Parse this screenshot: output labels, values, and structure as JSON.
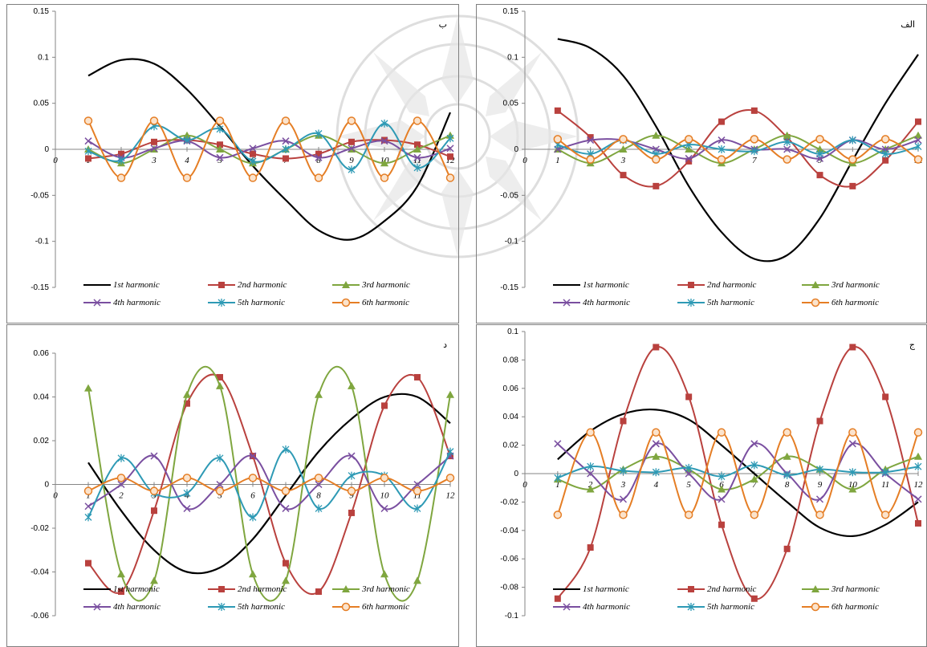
{
  "colors": {
    "h1": "#000000",
    "h2": "#b9413e",
    "h3": "#7fa63f",
    "h4": "#7a4fa0",
    "h5": "#2e9ab5",
    "h6": "#e57e25"
  },
  "legend_labels": [
    "1st harmonic",
    "2nd harmonic",
    "3rd harmonic",
    "4th harmonic",
    "5th harmonic",
    "6th harmonic"
  ],
  "chart_data": [
    {
      "type": "line",
      "corner_label": "ب",
      "x": [
        1,
        2,
        3,
        4,
        5,
        6,
        7,
        8,
        9,
        10,
        11,
        12
      ],
      "x_ticks": [
        "0",
        "1",
        "2",
        "3",
        "4",
        "5",
        "6",
        "7",
        "8",
        "9",
        "10",
        "11",
        "12"
      ],
      "ylim": [
        -0.15,
        0.15
      ],
      "y_ticks": [
        "0.15",
        "0.1",
        "0.05",
        "0",
        "-0.05",
        "-0.1",
        "-0.15"
      ],
      "series": [
        {
          "name": "1st harmonic",
          "values": [
            0.08,
            0.097,
            0.093,
            0.065,
            0.025,
            -0.018,
            -0.055,
            -0.088,
            -0.098,
            -0.078,
            -0.04,
            0.04
          ]
        },
        {
          "name": "2nd harmonic",
          "values": [
            -0.01,
            -0.005,
            0.008,
            0.01,
            0.005,
            -0.005,
            -0.01,
            -0.005,
            0.008,
            0.01,
            0.005,
            -0.008
          ]
        },
        {
          "name": "3rd harmonic",
          "values": [
            0,
            -0.015,
            0,
            0.015,
            0,
            -0.015,
            0,
            0.015,
            0,
            -0.015,
            0,
            0.015
          ]
        },
        {
          "name": "4th harmonic",
          "values": [
            0.009,
            -0.009,
            0.001,
            0.009,
            -0.009,
            0.001,
            0.009,
            -0.009,
            0.001,
            0.009,
            -0.009,
            0.001
          ]
        },
        {
          "name": "5th harmonic",
          "values": [
            -0.002,
            -0.012,
            0.025,
            0.01,
            0.022,
            -0.013,
            0,
            0.017,
            -0.022,
            0.028,
            -0.02,
            0.012
          ]
        },
        {
          "name": "6th harmonic",
          "values": [
            0.031,
            -0.031,
            0.031,
            -0.031,
            0.031,
            -0.031,
            0.031,
            -0.031,
            0.031,
            -0.031,
            0.031,
            -0.031
          ]
        }
      ]
    },
    {
      "type": "line",
      "corner_label": "الف",
      "x": [
        1,
        2,
        3,
        4,
        5,
        6,
        7,
        8,
        9,
        10,
        11,
        12
      ],
      "x_ticks": [
        "0",
        "1",
        "2",
        "3",
        "4",
        "5",
        "6",
        "7",
        "8",
        "9",
        "10",
        "11",
        "12"
      ],
      "ylim": [
        -0.15,
        0.15
      ],
      "y_ticks": [
        "0.15",
        "0.1",
        "0.05",
        "0",
        "-0.05",
        "-0.1",
        "-0.15"
      ],
      "series": [
        {
          "name": "1st harmonic",
          "values": [
            0.12,
            0.11,
            0.08,
            0.025,
            -0.04,
            -0.09,
            -0.119,
            -0.115,
            -0.075,
            -0.012,
            0.05,
            0.103
          ]
        },
        {
          "name": "2nd harmonic",
          "values": [
            0.042,
            0.013,
            -0.028,
            -0.04,
            -0.013,
            0.03,
            0.042,
            0.013,
            -0.028,
            -0.04,
            -0.012,
            0.03
          ]
        },
        {
          "name": "3rd harmonic",
          "values": [
            0,
            -0.015,
            0,
            0.015,
            0,
            -0.015,
            0,
            0.015,
            0,
            -0.015,
            0,
            0.015
          ]
        },
        {
          "name": "4th harmonic",
          "values": [
            0,
            0.01,
            0.01,
            0,
            -0.01,
            0.01,
            0,
            0,
            -0.01,
            0.01,
            0,
            0.01
          ]
        },
        {
          "name": "5th harmonic",
          "values": [
            0.005,
            -0.005,
            0.01,
            -0.005,
            0.005,
            0,
            -0.002,
            0.008,
            -0.005,
            0.01,
            -0.005,
            0.003
          ]
        },
        {
          "name": "6th harmonic",
          "values": [
            0.011,
            -0.011,
            0.011,
            -0.011,
            0.011,
            -0.011,
            0.011,
            -0.011,
            0.011,
            -0.011,
            0.011,
            -0.011
          ]
        }
      ]
    },
    {
      "type": "line",
      "corner_label": "د",
      "x": [
        1,
        2,
        3,
        4,
        5,
        6,
        7,
        8,
        9,
        10,
        11,
        12
      ],
      "x_ticks": [
        "0",
        "1",
        "2",
        "3",
        "4",
        "5",
        "6",
        "7",
        "8",
        "9",
        "10",
        "11",
        "12"
      ],
      "ylim": [
        -0.06,
        0.06
      ],
      "y_ticks": [
        "0.06",
        "0.04",
        "0.02",
        "0",
        "-0.02",
        "-0.04",
        "-0.06"
      ],
      "series": [
        {
          "name": "1st harmonic",
          "values": [
            0.01,
            -0.012,
            -0.03,
            -0.04,
            -0.038,
            -0.025,
            -0.005,
            0.015,
            0.03,
            0.04,
            0.04,
            0.028
          ]
        },
        {
          "name": "2nd harmonic",
          "values": [
            -0.036,
            -0.049,
            -0.012,
            0.037,
            0.049,
            0.013,
            -0.036,
            -0.049,
            -0.013,
            0.036,
            0.049,
            0.013
          ]
        },
        {
          "name": "3rd harmonic",
          "values": [
            0.044,
            -0.041,
            -0.044,
            0.041,
            0.045,
            -0.041,
            -0.044,
            0.041,
            0.045,
            -0.041,
            -0.044,
            0.041
          ]
        },
        {
          "name": "4th harmonic",
          "values": [
            -0.01,
            0,
            0.013,
            -0.011,
            0,
            0.013,
            -0.011,
            0,
            0.013,
            -0.011,
            0,
            0.013
          ]
        },
        {
          "name": "5th harmonic",
          "values": [
            -0.015,
            0.012,
            -0.004,
            -0.004,
            0.012,
            -0.015,
            0.016,
            -0.011,
            0.004,
            0.004,
            -0.011,
            0.015
          ]
        },
        {
          "name": "6th harmonic",
          "values": [
            -0.003,
            0.003,
            -0.003,
            0.003,
            -0.003,
            0.003,
            -0.003,
            0.003,
            -0.003,
            0.003,
            -0.003,
            0.003
          ]
        }
      ]
    },
    {
      "type": "line",
      "corner_label": "ج",
      "x": [
        1,
        2,
        3,
        4,
        5,
        6,
        7,
        8,
        9,
        10,
        11,
        12
      ],
      "x_ticks": [
        "0",
        "1",
        "2",
        "3",
        "4",
        "5",
        "6",
        "7",
        "8",
        "9",
        "10",
        "11",
        "12"
      ],
      "ylim": [
        -0.1,
        0.1
      ],
      "y_ticks": [
        "0.1",
        "0.08",
        "0.06",
        "0.04",
        "0.02",
        "0",
        "-0.02",
        "-0.04",
        "-0.06",
        "-0.08",
        "-0.1"
      ],
      "series": [
        {
          "name": "1st harmonic",
          "values": [
            0.01,
            0.03,
            0.042,
            0.045,
            0.038,
            0.02,
            0,
            -0.02,
            -0.038,
            -0.044,
            -0.036,
            -0.02
          ]
        },
        {
          "name": "2nd harmonic",
          "values": [
            -0.088,
            -0.052,
            0.037,
            0.089,
            0.054,
            -0.036,
            -0.088,
            -0.053,
            0.037,
            0.089,
            0.054,
            -0.035
          ]
        },
        {
          "name": "3rd harmonic",
          "values": [
            -0.004,
            -0.011,
            0.003,
            0.012,
            0.003,
            -0.011,
            -0.004,
            0.012,
            0.003,
            -0.011,
            0.003,
            0.012
          ]
        },
        {
          "name": "4th harmonic",
          "values": [
            0.021,
            0,
            -0.018,
            0.021,
            0,
            -0.018,
            0.021,
            0,
            -0.018,
            0.021,
            0,
            -0.018
          ]
        },
        {
          "name": "5th harmonic",
          "values": [
            -0.003,
            0.005,
            0.002,
            0.001,
            0.004,
            -0.002,
            0.006,
            -0.001,
            0.003,
            0.001,
            0.001,
            0.005
          ]
        },
        {
          "name": "6th harmonic",
          "values": [
            -0.029,
            0.029,
            -0.029,
            0.029,
            -0.029,
            0.029,
            -0.029,
            0.029,
            -0.029,
            0.029,
            -0.029,
            0.029
          ]
        }
      ]
    }
  ]
}
